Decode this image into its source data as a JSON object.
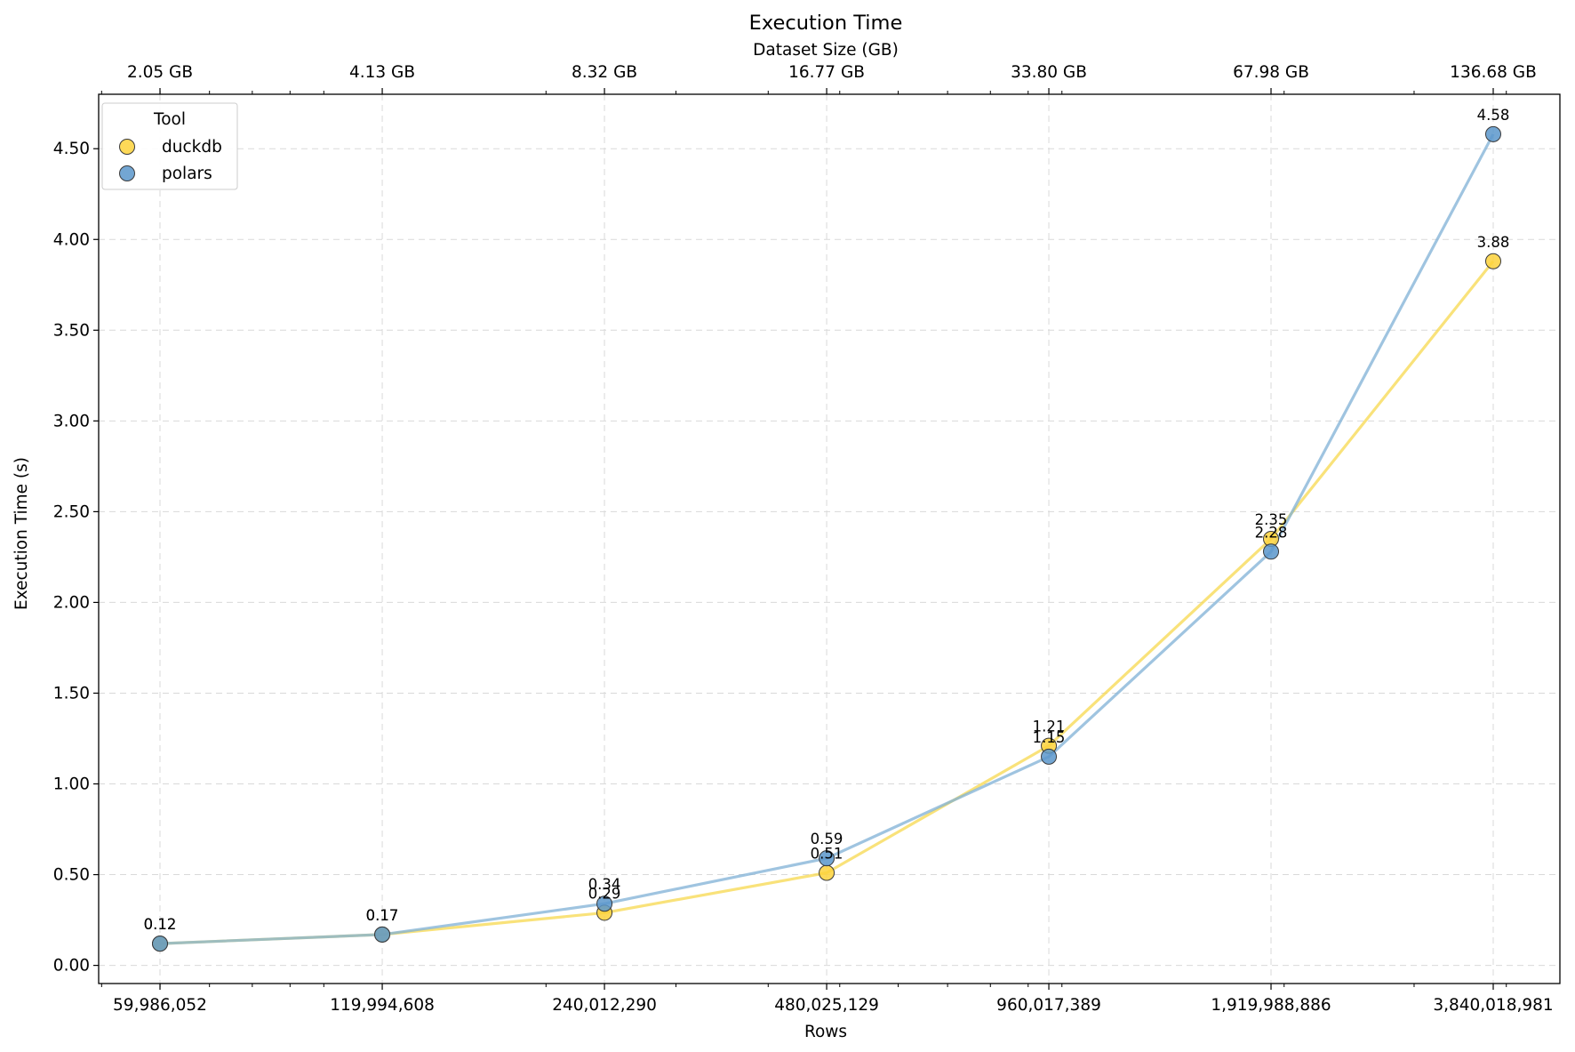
{
  "chart_data": {
    "type": "line",
    "title": "Execution Time",
    "xlabel": "Rows",
    "ylabel": "Execution Time (s)",
    "top_xlabel": "Dataset Size (GB)",
    "x_scale": "log2",
    "x": [
      59986052,
      119994608,
      240012290,
      480025129,
      960017389,
      1919988886,
      3840018981
    ],
    "x_tick_labels": [
      "59,986,052",
      "119,994,608",
      "240,012,290",
      "480,025,129",
      "960,017,389",
      "1,919,988,886",
      "3,840,018,981"
    ],
    "top_tick_labels": [
      "2.05 GB",
      "4.13 GB",
      "8.32 GB",
      "16.77 GB",
      "33.80 GB",
      "67.98 GB",
      "136.68 GB"
    ],
    "ylim": [
      -0.1,
      4.8
    ],
    "y_ticks": [
      0.0,
      0.5,
      1.0,
      1.5,
      2.0,
      2.5,
      3.0,
      3.5,
      4.0,
      4.5
    ],
    "y_tick_labels": [
      "0.00",
      "0.50",
      "1.00",
      "1.50",
      "2.00",
      "2.50",
      "3.00",
      "3.50",
      "4.00",
      "4.50"
    ],
    "grid": true,
    "legend_title": "Tool",
    "legend_position": "top-left",
    "series": [
      {
        "name": "duckdb",
        "values": [
          0.12,
          0.17,
          0.29,
          0.51,
          1.21,
          2.35,
          3.88
        ],
        "labels": [
          "0.12",
          "0.17",
          "0.29",
          "0.51",
          "1.21",
          "2.35",
          "3.88"
        ],
        "line_color": "#f7d84e",
        "marker_color": "#fdd23b"
      },
      {
        "name": "polars",
        "values": [
          0.12,
          0.17,
          0.34,
          0.59,
          1.15,
          2.28,
          4.58
        ],
        "labels": [
          "0.12",
          "0.17",
          "0.34",
          "0.59",
          "1.15",
          "2.28",
          "4.58"
        ],
        "line_color": "#7fb0d6",
        "marker_color": "#5b97cb"
      }
    ]
  }
}
